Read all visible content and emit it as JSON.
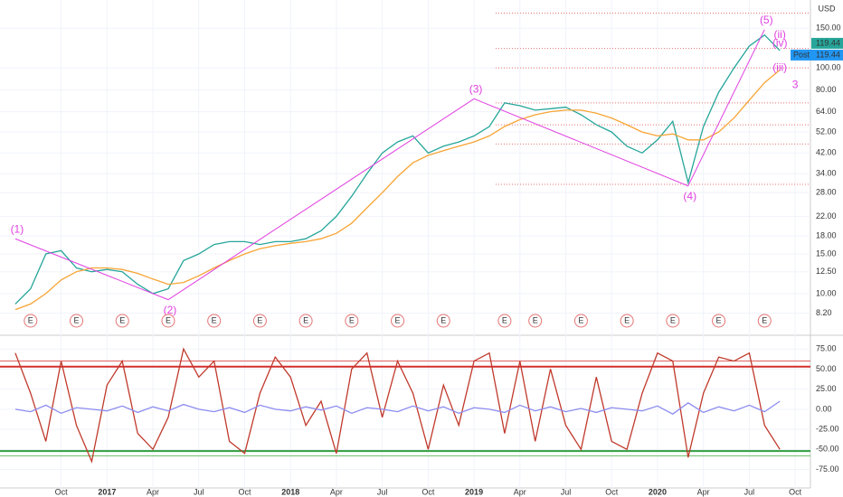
{
  "chart_data": [
    {
      "type": "line",
      "log_scale": true,
      "currency": "USD",
      "x": [
        "2016-07",
        "2016-08",
        "2016-09",
        "2016-10",
        "2016-11",
        "2016-12",
        "2017-01",
        "2017-02",
        "2017-03",
        "2017-04",
        "2017-05",
        "2017-06",
        "2017-07",
        "2017-08",
        "2017-09",
        "2017-10",
        "2017-11",
        "2017-12",
        "2018-01",
        "2018-02",
        "2018-03",
        "2018-04",
        "2018-05",
        "2018-06",
        "2018-07",
        "2018-08",
        "2018-09",
        "2018-10",
        "2018-11",
        "2018-12",
        "2019-01",
        "2019-02",
        "2019-03",
        "2019-04",
        "2019-05",
        "2019-06",
        "2019-07",
        "2019-08",
        "2019-09",
        "2019-10",
        "2019-11",
        "2019-12",
        "2020-01",
        "2020-02",
        "2020-03",
        "2020-04",
        "2020-05",
        "2020-06",
        "2020-07",
        "2020-08",
        "2020-09"
      ],
      "series": [
        {
          "color": "#26a69a",
          "values": [
            9,
            10.5,
            15,
            15.5,
            13,
            12.5,
            12.8,
            12.5,
            11,
            10,
            10.5,
            14,
            15,
            16.5,
            17,
            17,
            16.5,
            17,
            17,
            17.5,
            19,
            22,
            27,
            34,
            42,
            47,
            50,
            42,
            45,
            47,
            50,
            55,
            70,
            68,
            65,
            66,
            67,
            62,
            56,
            52,
            45,
            42,
            48,
            58,
            31,
            55,
            78,
            100,
            125,
            140,
            119.44
          ]
        },
        {
          "color": "#f7a435",
          "values": [
            8.5,
            9,
            10,
            11.5,
            12.5,
            13,
            13,
            12.8,
            12.3,
            11.6,
            11,
            11.2,
            12,
            13,
            14,
            15,
            15.8,
            16.3,
            16.7,
            17,
            17.5,
            18.5,
            20.5,
            24,
            28,
            33,
            38,
            41,
            43,
            45,
            47,
            50,
            55,
            59,
            62,
            64,
            65,
            65,
            63,
            60,
            56,
            52,
            50,
            51,
            48,
            48,
            52,
            60,
            72,
            86,
            98
          ]
        }
      ],
      "waves": [
        {
          "x": "2016-07",
          "y": 17.5,
          "label": "(1)"
        },
        {
          "x": "2017-05",
          "y": 9.4,
          "label": "(2)"
        },
        {
          "x": "2019-01",
          "y": 73,
          "label": "(3)"
        },
        {
          "x": "2020-03",
          "y": 30,
          "label": "(4)"
        },
        {
          "x": "2020-08",
          "y": 148,
          "label": "(5)"
        }
      ],
      "wave_color": "#e040e0",
      "annotations": [
        {
          "x": "2020-09",
          "y": 140,
          "text": "(ii)"
        },
        {
          "x": "2020-09",
          "y": 128,
          "text": "(iv)"
        },
        {
          "x": "2020-09",
          "y": 100,
          "text": "(iii)"
        },
        {
          "x": "2020-10",
          "y": 84,
          "text": "3"
        }
      ],
      "levels": [
        30.5,
        46,
        56,
        70,
        100,
        122,
        175
      ],
      "earnings_label": "E",
      "earnings": [
        "2016-08",
        "2016-11",
        "2017-02",
        "2017-05",
        "2017-08",
        "2017-11",
        "2018-02",
        "2018-05",
        "2018-08",
        "2018-11",
        "2019-03",
        "2019-05",
        "2019-08",
        "2019-11",
        "2020-02",
        "2020-05",
        "2020-08"
      ],
      "price_label": "119.44",
      "post_label": "Post",
      "xlim": [
        "2016-06",
        "2020-11"
      ],
      "ylim": [
        6.6,
        200
      ],
      "yticks": [
        {
          "value": 8.2,
          "label": "8.20"
        },
        {
          "value": 10,
          "label": "10.00"
        },
        {
          "value": 12.5,
          "label": "12.50"
        },
        {
          "value": 15,
          "label": "15.00"
        },
        {
          "value": 18,
          "label": "18.00"
        },
        {
          "value": 22,
          "label": "22.00"
        },
        {
          "value": 28,
          "label": "28.00"
        },
        {
          "value": 34,
          "label": "34.00"
        },
        {
          "value": 42,
          "label": "42.00"
        },
        {
          "value": 52,
          "label": "52.00"
        },
        {
          "value": 64,
          "label": "64.00"
        },
        {
          "value": 80,
          "label": "80.00"
        },
        {
          "value": 100,
          "label": "100.00"
        },
        {
          "value": 150,
          "label": "150.00"
        }
      ],
      "xticks": [
        {
          "value": "2016-10",
          "label": "Oct"
        },
        {
          "value": "2017-01",
          "label": "2017"
        },
        {
          "value": "2017-04",
          "label": "Apr"
        },
        {
          "value": "2017-07",
          "label": "Jul"
        },
        {
          "value": "2017-10",
          "label": "Oct"
        },
        {
          "value": "2018-01",
          "label": "2018"
        },
        {
          "value": "2018-04",
          "label": "Apr"
        },
        {
          "value": "2018-07",
          "label": "Jul"
        },
        {
          "value": "2018-10",
          "label": "Oct"
        },
        {
          "value": "2019-01",
          "label": "2019"
        },
        {
          "value": "2019-04",
          "label": "Apr"
        },
        {
          "value": "2019-07",
          "label": "Jul"
        },
        {
          "value": "2019-10",
          "label": "Oct"
        },
        {
          "value": "2020-01",
          "label": "2020"
        },
        {
          "value": "2020-04",
          "label": "Apr"
        },
        {
          "value": "2020-07",
          "label": "Jul"
        },
        {
          "value": "2020-10",
          "label": "Oct"
        }
      ]
    },
    {
      "type": "line",
      "series": [
        {
          "color": "#c0392b",
          "values": [
            70,
            20,
            -40,
            60,
            -20,
            -65,
            30,
            60,
            -30,
            -50,
            -10,
            75,
            40,
            60,
            -40,
            -55,
            20,
            65,
            40,
            -20,
            10,
            -55,
            50,
            70,
            -10,
            60,
            20,
            -50,
            30,
            -20,
            60,
            70,
            -30,
            60,
            -40,
            50,
            -20,
            -50,
            40,
            -40,
            -50,
            20,
            70,
            60,
            -60,
            20,
            65,
            60,
            70,
            -20,
            -50
          ]
        },
        {
          "color": "#8c8cf0",
          "values": [
            0,
            -3,
            5,
            -5,
            2,
            0,
            -2,
            4,
            -4,
            3,
            -2,
            6,
            0,
            -3,
            2,
            -4,
            5,
            0,
            -2,
            3,
            -1,
            4,
            -5,
            2,
            0,
            -3,
            4,
            -2,
            3,
            -5,
            2,
            0,
            -4,
            5,
            -2,
            3,
            -3,
            1,
            -4,
            2,
            0,
            -2,
            4,
            -6,
            8,
            -4,
            3,
            -2,
            5,
            -3,
            10
          ]
        }
      ],
      "levels": [
        {
          "value": 60,
          "color": "#e06060"
        },
        {
          "value": 53,
          "color": "#d32f2f"
        },
        {
          "value": -52,
          "color": "#2e9e3e"
        },
        {
          "value": -58,
          "color": "#70c070"
        }
      ],
      "ylim": [
        -98,
        91
      ],
      "yticks": [
        {
          "value": 75,
          "label": "75.00"
        },
        {
          "value": 50,
          "label": "50.00"
        },
        {
          "value": 25,
          "label": "25.00"
        },
        {
          "value": 0,
          "label": "0.00"
        },
        {
          "value": -25,
          "label": "-25.00"
        },
        {
          "value": -50,
          "label": "-50.00"
        },
        {
          "value": -75,
          "label": "-75.00"
        }
      ]
    }
  ]
}
